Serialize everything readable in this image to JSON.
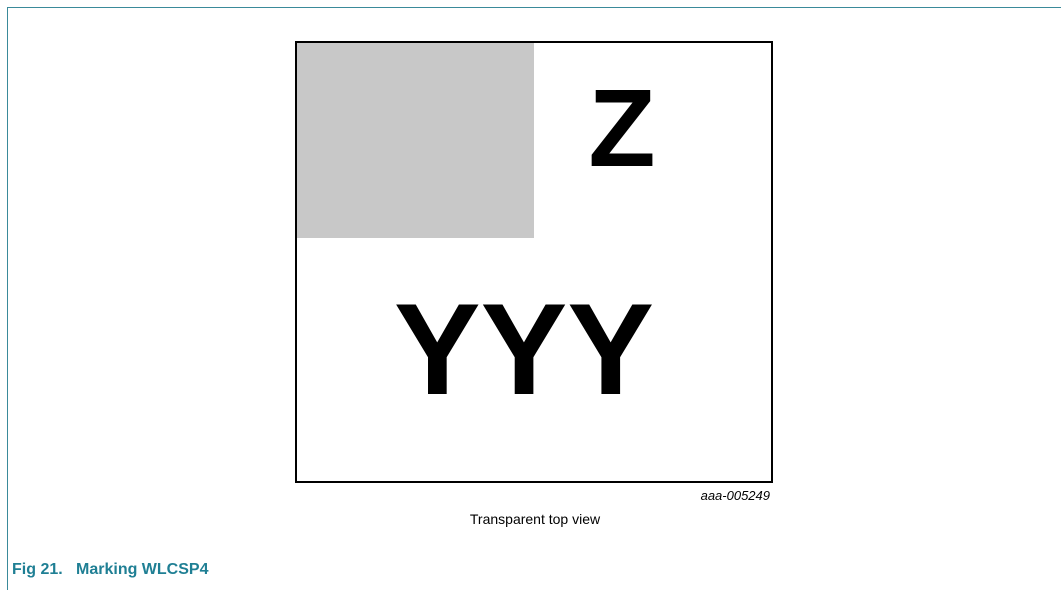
{
  "figure": {
    "marking_z": "Z",
    "marking_yyy": "YYY",
    "code": "aaa-005249",
    "view_caption": "Transparent top view",
    "caption": "Fig 21.   Marking WLCSP4"
  }
}
